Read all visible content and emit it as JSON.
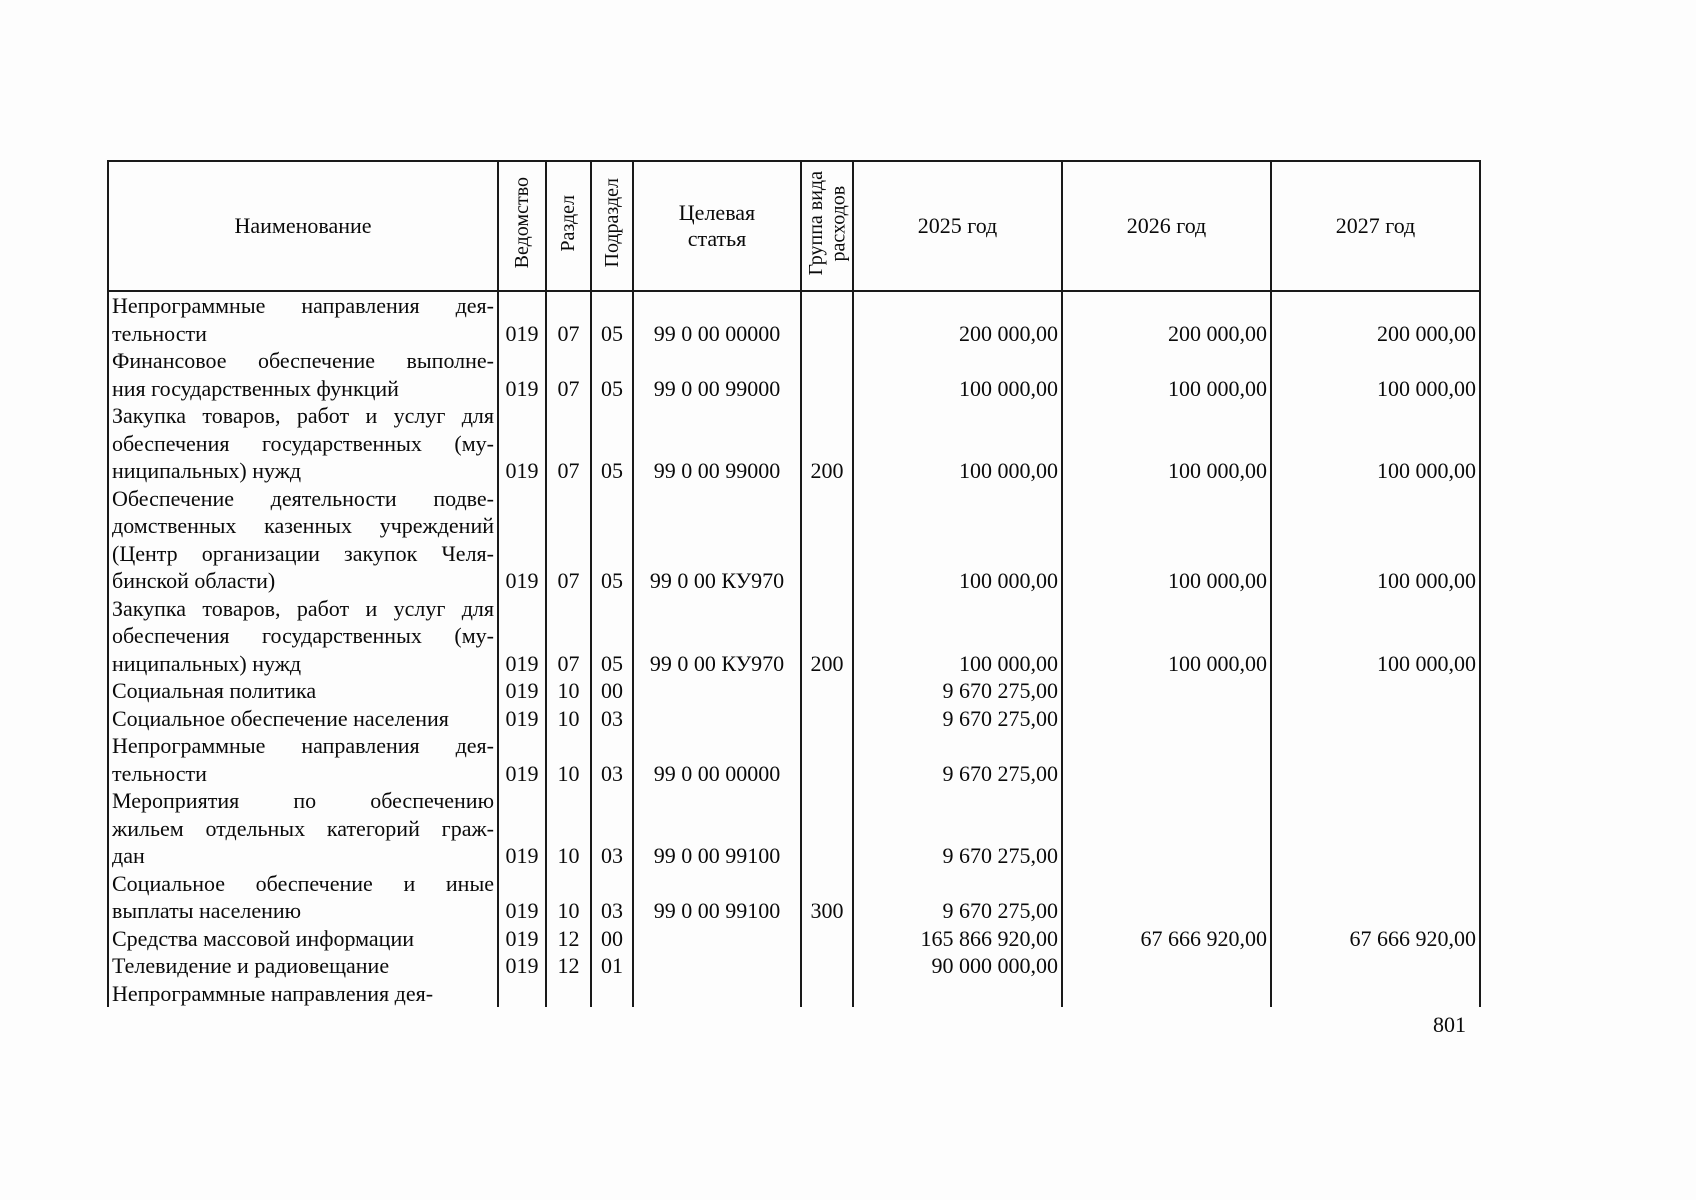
{
  "page_number": "801",
  "table": {
    "headers": {
      "name": "Наименование",
      "vedomstvo": "Ведомство",
      "razdel": "Раздел",
      "podrazdel": "Подраздел",
      "target_article": "Целевая\nстатья",
      "expense_group": "Группа вида\nрасходов",
      "year_2025": "2025 год",
      "year_2026": "2026 год",
      "year_2027": "2027 год"
    },
    "rows": [
      {
        "name_lines": [
          "Непрограммные направления дея-",
          "тельности"
        ],
        "vedomstvo": "019",
        "razdel": "07",
        "podrazdel": "05",
        "target": "99 0 00 00000",
        "group": "",
        "y2025": "200 000,00",
        "y2026": "200 000,00",
        "y2027": "200 000,00"
      },
      {
        "name_lines": [
          "Финансовое обеспечение выполне-",
          "ния государственных функций"
        ],
        "vedomstvo": "019",
        "razdel": "07",
        "podrazdel": "05",
        "target": "99 0 00 99000",
        "group": "",
        "y2025": "100 000,00",
        "y2026": "100 000,00",
        "y2027": "100 000,00"
      },
      {
        "name_lines": [
          "Закупка товаров, работ и услуг для",
          "обеспечения государственных (му-",
          "ниципальных) нужд"
        ],
        "vedomstvo": "019",
        "razdel": "07",
        "podrazdel": "05",
        "target": "99 0 00 99000",
        "group": "200",
        "y2025": "100 000,00",
        "y2026": "100 000,00",
        "y2027": "100 000,00"
      },
      {
        "name_lines": [
          "Обеспечение деятельности подве-",
          "домственных казенных учреждений",
          "(Центр организации закупок Челя-",
          "бинской области)"
        ],
        "vedomstvo": "019",
        "razdel": "07",
        "podrazdel": "05",
        "target": "99 0 00 КУ970",
        "group": "",
        "y2025": "100 000,00",
        "y2026": "100 000,00",
        "y2027": "100 000,00"
      },
      {
        "name_lines": [
          "Закупка товаров, работ и услуг для",
          "обеспечения государственных (му-",
          "ниципальных) нужд"
        ],
        "vedomstvo": "019",
        "razdel": "07",
        "podrazdel": "05",
        "target": "99 0 00 КУ970",
        "group": "200",
        "y2025": "100 000,00",
        "y2026": "100 000,00",
        "y2027": "100 000,00"
      },
      {
        "name_lines": [
          "Социальная политика"
        ],
        "vedomstvo": "019",
        "razdel": "10",
        "podrazdel": "00",
        "target": "",
        "group": "",
        "y2025": "9 670 275,00",
        "y2026": "",
        "y2027": ""
      },
      {
        "name_lines": [
          "Социальное обеспечение населения"
        ],
        "vedomstvo": "019",
        "razdel": "10",
        "podrazdel": "03",
        "target": "",
        "group": "",
        "y2025": "9 670 275,00",
        "y2026": "",
        "y2027": ""
      },
      {
        "name_lines": [
          "Непрограммные направления дея-",
          "тельности"
        ],
        "vedomstvo": "019",
        "razdel": "10",
        "podrazdel": "03",
        "target": "99 0 00 00000",
        "group": "",
        "y2025": "9 670 275,00",
        "y2026": "",
        "y2027": ""
      },
      {
        "name_lines": [
          "Мероприятия по обеспечению",
          "жильем отдельных категорий граж-",
          "дан"
        ],
        "vedomstvo": "019",
        "razdel": "10",
        "podrazdel": "03",
        "target": "99 0 00 99100",
        "group": "",
        "y2025": "9 670 275,00",
        "y2026": "",
        "y2027": ""
      },
      {
        "name_lines": [
          "Социальное обеспечение и иные",
          "выплаты населению"
        ],
        "vedomstvo": "019",
        "razdel": "10",
        "podrazdel": "03",
        "target": "99 0 00 99100",
        "group": "300",
        "y2025": "9 670 275,00",
        "y2026": "",
        "y2027": ""
      },
      {
        "name_lines": [
          "Средства массовой информации"
        ],
        "vedomstvo": "019",
        "razdel": "12",
        "podrazdel": "00",
        "target": "",
        "group": "",
        "y2025": "165 866 920,00",
        "y2026": "67 666 920,00",
        "y2027": "67 666 920,00"
      },
      {
        "name_lines": [
          "Телевидение и радиовещание"
        ],
        "vedomstvo": "019",
        "razdel": "12",
        "podrazdel": "01",
        "target": "",
        "group": "",
        "y2025": "90 000 000,00",
        "y2026": "",
        "y2027": ""
      },
      {
        "name_lines": [
          "Непрограммные направления дея-"
        ],
        "vedomstvo": "",
        "razdel": "",
        "podrazdel": "",
        "target": "",
        "group": "",
        "y2025": "",
        "y2026": "",
        "y2027": ""
      }
    ]
  }
}
